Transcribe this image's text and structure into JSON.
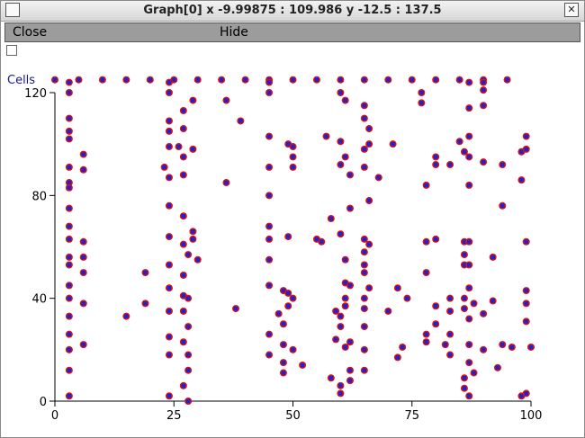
{
  "window": {
    "title": "Graph[0]  x -9.99875 : 109.986  y -12.5 : 137.5",
    "menu_icon": "window-menu-icon",
    "close_icon": "close-x-icon",
    "close_glyph": "✕"
  },
  "menubar": {
    "close_label": "Close",
    "hide_label": "Hide"
  },
  "chart_data": {
    "type": "scatter",
    "ylabel": "Cells",
    "xlim": [
      0,
      100
    ],
    "ylim": [
      0,
      120
    ],
    "x_ticks": [
      "0",
      "25",
      "50",
      "75",
      "100"
    ],
    "y_ticks": [
      "0",
      "40",
      "80",
      "120"
    ],
    "colors": {
      "outer": "#dd1111",
      "inner": "#2222cc"
    },
    "points": [
      [
        0,
        125
      ],
      [
        5,
        125
      ],
      [
        10,
        125
      ],
      [
        15,
        125
      ],
      [
        20,
        125
      ],
      [
        25,
        125
      ],
      [
        30,
        125
      ],
      [
        35,
        125
      ],
      [
        40,
        125
      ],
      [
        45,
        125
      ],
      [
        50,
        125
      ],
      [
        55,
        125
      ],
      [
        60,
        125
      ],
      [
        65,
        125
      ],
      [
        70,
        125
      ],
      [
        75,
        125
      ],
      [
        80,
        125
      ],
      [
        85,
        125
      ],
      [
        90,
        125
      ],
      [
        95,
        125
      ],
      [
        3,
        124
      ],
      [
        3,
        120
      ],
      [
        3,
        110
      ],
      [
        3,
        105
      ],
      [
        3,
        102
      ],
      [
        3,
        91
      ],
      [
        3,
        85
      ],
      [
        3,
        83
      ],
      [
        3,
        75
      ],
      [
        3,
        68
      ],
      [
        3,
        63
      ],
      [
        3,
        56
      ],
      [
        3,
        53
      ],
      [
        3,
        45
      ],
      [
        3,
        40
      ],
      [
        3,
        33
      ],
      [
        3,
        26
      ],
      [
        3,
        20
      ],
      [
        3,
        12
      ],
      [
        3,
        2
      ],
      [
        6,
        96
      ],
      [
        6,
        90
      ],
      [
        6,
        62
      ],
      [
        6,
        56
      ],
      [
        6,
        50
      ],
      [
        6,
        38
      ],
      [
        6,
        22
      ],
      [
        15,
        33
      ],
      [
        19,
        50
      ],
      [
        19,
        38
      ],
      [
        23,
        91
      ],
      [
        24,
        124
      ],
      [
        24,
        120
      ],
      [
        24,
        109
      ],
      [
        24,
        105
      ],
      [
        24,
        99
      ],
      [
        24,
        87
      ],
      [
        24,
        76
      ],
      [
        24,
        64
      ],
      [
        24,
        53
      ],
      [
        24,
        44
      ],
      [
        24,
        35
      ],
      [
        24,
        25
      ],
      [
        24,
        18
      ],
      [
        24,
        2
      ],
      [
        26,
        99
      ],
      [
        27,
        113
      ],
      [
        27,
        106
      ],
      [
        27,
        95
      ],
      [
        27,
        88
      ],
      [
        27,
        72
      ],
      [
        27,
        61
      ],
      [
        27,
        49
      ],
      [
        27,
        41
      ],
      [
        27,
        35
      ],
      [
        27,
        23
      ],
      [
        27,
        6
      ],
      [
        28,
        57
      ],
      [
        28,
        40
      ],
      [
        28,
        29
      ],
      [
        28,
        18
      ],
      [
        28,
        12
      ],
      [
        28,
        0
      ],
      [
        29,
        117
      ],
      [
        29,
        98
      ],
      [
        29,
        66
      ],
      [
        29,
        63
      ],
      [
        30,
        55
      ],
      [
        36,
        117
      ],
      [
        36,
        85
      ],
      [
        38,
        36
      ],
      [
        39,
        109
      ],
      [
        45,
        124
      ],
      [
        45,
        120
      ],
      [
        45,
        103
      ],
      [
        45,
        91
      ],
      [
        45,
        80
      ],
      [
        45,
        68
      ],
      [
        45,
        63
      ],
      [
        45,
        55
      ],
      [
        45,
        45
      ],
      [
        45,
        26
      ],
      [
        45,
        18
      ],
      [
        47,
        34
      ],
      [
        48,
        43
      ],
      [
        48,
        30
      ],
      [
        48,
        22
      ],
      [
        48,
        15
      ],
      [
        48,
        11
      ],
      [
        49,
        100
      ],
      [
        49,
        64
      ],
      [
        49,
        42
      ],
      [
        49,
        37
      ],
      [
        50,
        99
      ],
      [
        50,
        95
      ],
      [
        50,
        91
      ],
      [
        50,
        40
      ],
      [
        50,
        20
      ],
      [
        52,
        14
      ],
      [
        55,
        63
      ],
      [
        56,
        62
      ],
      [
        57,
        103
      ],
      [
        58,
        71
      ],
      [
        58,
        9
      ],
      [
        59,
        24
      ],
      [
        59,
        35
      ],
      [
        60,
        33
      ],
      [
        60,
        29
      ],
      [
        60,
        120
      ],
      [
        60,
        101
      ],
      [
        60,
        92
      ],
      [
        60,
        65
      ],
      [
        60,
        6
      ],
      [
        60,
        3
      ],
      [
        61,
        117
      ],
      [
        61,
        95
      ],
      [
        61,
        55
      ],
      [
        61,
        46
      ],
      [
        61,
        40
      ],
      [
        61,
        37
      ],
      [
        61,
        21
      ],
      [
        62,
        88
      ],
      [
        62,
        75
      ],
      [
        62,
        45
      ],
      [
        62,
        23
      ],
      [
        62,
        12
      ],
      [
        62,
        8
      ],
      [
        65,
        115
      ],
      [
        65,
        110
      ],
      [
        65,
        98
      ],
      [
        65,
        91
      ],
      [
        65,
        63
      ],
      [
        65,
        58
      ],
      [
        65,
        53
      ],
      [
        65,
        50
      ],
      [
        65,
        40
      ],
      [
        65,
        36
      ],
      [
        65,
        29
      ],
      [
        65,
        20
      ],
      [
        65,
        12
      ],
      [
        66,
        106
      ],
      [
        66,
        100
      ],
      [
        66,
        78
      ],
      [
        66,
        61
      ],
      [
        66,
        44
      ],
      [
        68,
        87
      ],
      [
        70,
        35
      ],
      [
        71,
        100
      ],
      [
        72,
        17
      ],
      [
        72,
        44
      ],
      [
        73,
        21
      ],
      [
        74,
        40
      ],
      [
        77,
        116
      ],
      [
        77,
        120
      ],
      [
        78,
        84
      ],
      [
        78,
        62
      ],
      [
        78,
        50
      ],
      [
        78,
        26
      ],
      [
        78,
        23
      ],
      [
        80,
        95
      ],
      [
        80,
        92
      ],
      [
        80,
        63
      ],
      [
        80,
        37
      ],
      [
        80,
        30
      ],
      [
        82,
        22
      ],
      [
        83,
        92
      ],
      [
        83,
        40
      ],
      [
        83,
        35
      ],
      [
        83,
        26
      ],
      [
        83,
        18
      ],
      [
        85,
        101
      ],
      [
        86,
        97
      ],
      [
        86,
        62
      ],
      [
        86,
        57
      ],
      [
        86,
        53
      ],
      [
        86,
        40
      ],
      [
        86,
        36
      ],
      [
        86,
        9
      ],
      [
        86,
        5
      ],
      [
        87,
        124
      ],
      [
        87,
        114
      ],
      [
        87,
        103
      ],
      [
        87,
        95
      ],
      [
        87,
        84
      ],
      [
        87,
        62
      ],
      [
        87,
        53
      ],
      [
        87,
        44
      ],
      [
        87,
        32
      ],
      [
        87,
        22
      ],
      [
        87,
        15
      ],
      [
        87,
        2
      ],
      [
        88,
        38
      ],
      [
        88,
        11
      ],
      [
        90,
        124
      ],
      [
        90,
        121
      ],
      [
        90,
        115
      ],
      [
        90,
        93
      ],
      [
        90,
        34
      ],
      [
        90,
        20
      ],
      [
        92,
        56
      ],
      [
        92,
        39
      ],
      [
        93,
        13
      ],
      [
        94,
        76
      ],
      [
        94,
        92
      ],
      [
        94,
        22
      ],
      [
        96,
        21
      ],
      [
        98,
        97
      ],
      [
        98,
        86
      ],
      [
        98,
        2
      ],
      [
        99,
        98
      ],
      [
        99,
        103
      ],
      [
        99,
        62
      ],
      [
        99,
        43
      ],
      [
        99,
        38
      ],
      [
        99,
        31
      ],
      [
        99,
        3
      ],
      [
        100,
        21
      ]
    ]
  }
}
